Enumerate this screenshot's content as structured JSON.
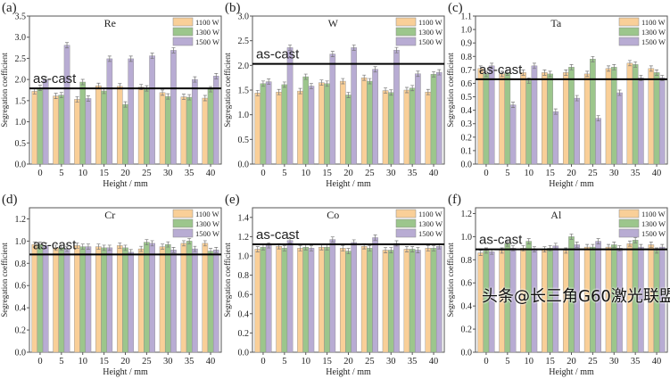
{
  "colors": {
    "1100 W": "#f9cf98",
    "1300 W": "#9cc68c",
    "1500 W": "#b8acd3",
    "error_bar": "#777777",
    "as_cast_line": "#000000"
  },
  "watermark": "头条@长三角G60激光联盟",
  "chart_data": [
    {
      "type": "bar",
      "panel_label": "(a)",
      "title": "Re",
      "xlabel": "Height / mm",
      "ylabel": "Segregation coefficient",
      "categories": [
        "0",
        "5",
        "10",
        "15",
        "20",
        "25",
        "30",
        "35",
        "40"
      ],
      "ylim": [
        0,
        3.5
      ],
      "yticks": [
        0.0,
        0.5,
        1.0,
        1.5,
        2.0,
        2.5,
        3.0,
        3.5
      ],
      "legend": "top-right",
      "grid": false,
      "reference_line": {
        "label": "as-cast",
        "value": 1.79
      },
      "series": [
        {
          "name": "1100 W",
          "values": [
            1.72,
            1.61,
            1.53,
            1.85,
            1.84,
            1.82,
            1.69,
            1.59,
            1.56
          ]
        },
        {
          "name": "1300 W",
          "values": [
            1.8,
            1.63,
            1.94,
            1.73,
            1.41,
            1.79,
            1.6,
            1.58,
            1.77
          ]
        },
        {
          "name": "1500 W",
          "values": [
            2.0,
            2.81,
            1.55,
            2.49,
            2.49,
            2.56,
            2.69,
            2.0,
            2.08
          ]
        }
      ]
    },
    {
      "type": "bar",
      "panel_label": "(b)",
      "title": "W",
      "xlabel": "Height / mm",
      "ylabel": "Segregation coefficient",
      "categories": [
        "0",
        "5",
        "10",
        "15",
        "20",
        "25",
        "30",
        "35",
        "40"
      ],
      "ylim": [
        0,
        3.0
      ],
      "yticks": [
        0.0,
        0.5,
        1.0,
        1.5,
        2.0,
        2.5,
        3.0
      ],
      "legend": "top-right",
      "grid": false,
      "reference_line": {
        "label": "as-cast",
        "value": 2.03
      },
      "series": [
        {
          "name": "1100 W",
          "values": [
            1.44,
            1.46,
            1.48,
            1.65,
            1.68,
            1.75,
            1.49,
            1.5,
            1.46
          ]
        },
        {
          "name": "1300 W",
          "values": [
            1.63,
            1.61,
            1.77,
            1.63,
            1.4,
            1.68,
            1.45,
            1.54,
            1.82
          ]
        },
        {
          "name": "1500 W",
          "values": [
            1.67,
            2.36,
            1.58,
            2.23,
            2.36,
            1.92,
            2.31,
            1.83,
            1.86
          ]
        }
      ]
    },
    {
      "type": "bar",
      "panel_label": "(c)",
      "title": "Ta",
      "xlabel": "Height / mm",
      "ylabel": "Segregation coefficient",
      "categories": [
        "0",
        "5",
        "10",
        "15",
        "20",
        "25",
        "30",
        "35",
        "40"
      ],
      "ylim": [
        0,
        1.1
      ],
      "yticks": [
        0.0,
        0.1,
        0.2,
        0.3,
        0.4,
        0.5,
        0.6,
        0.7,
        0.8,
        0.9,
        1.0,
        1.1
      ],
      "legend": "top-right",
      "grid": false,
      "reference_line": {
        "label": "as-cast",
        "value": 0.63
      },
      "series": [
        {
          "name": "1100 W",
          "values": [
            0.71,
            0.67,
            0.68,
            0.68,
            0.68,
            0.67,
            0.71,
            0.75,
            0.71
          ]
        },
        {
          "name": "1300 W",
          "values": [
            0.67,
            0.68,
            0.62,
            0.67,
            0.72,
            0.78,
            0.72,
            0.74,
            0.68
          ]
        },
        {
          "name": "1500 W",
          "values": [
            0.73,
            0.44,
            0.73,
            0.39,
            0.49,
            0.34,
            0.53,
            0.64,
            0.64
          ]
        }
      ]
    },
    {
      "type": "bar",
      "panel_label": "(d)",
      "title": "Cr",
      "xlabel": "Height / mm",
      "ylabel": "Segregation coefficient",
      "categories": [
        "0",
        "5",
        "10",
        "15",
        "20",
        "25",
        "30",
        "35",
        "40"
      ],
      "ylim": [
        0,
        1.3
      ],
      "yticks": [
        0.0,
        0.2,
        0.4,
        0.6,
        0.8,
        1.0,
        1.2
      ],
      "legend": "top-right",
      "grid": false,
      "reference_line": {
        "label": "as-cast",
        "value": 0.88
      },
      "series": [
        {
          "name": "1100 W",
          "values": [
            0.97,
            0.94,
            0.96,
            0.95,
            0.96,
            0.93,
            0.95,
            0.98,
            0.98
          ]
        },
        {
          "name": "1300 W",
          "values": [
            0.97,
            0.94,
            0.95,
            0.94,
            0.94,
            0.99,
            0.97,
            1.0,
            0.91
          ]
        },
        {
          "name": "1500 W",
          "values": [
            0.96,
            0.93,
            0.95,
            0.94,
            0.9,
            0.98,
            0.92,
            0.93,
            0.92
          ]
        }
      ]
    },
    {
      "type": "bar",
      "panel_label": "(e)",
      "title": "Co",
      "xlabel": "Height / mm",
      "ylabel": "Segregation coefficient",
      "categories": [
        "0",
        "5",
        "10",
        "15",
        "20",
        "25",
        "30",
        "35",
        "40"
      ],
      "ylim": [
        0,
        1.5
      ],
      "yticks": [
        0.0,
        0.2,
        0.4,
        0.6,
        0.8,
        1.0,
        1.2,
        1.4
      ],
      "legend": "top-right",
      "grid": false,
      "reference_line": {
        "label": "as-cast",
        "value": 1.12
      },
      "series": [
        {
          "name": "1100 W",
          "values": [
            1.07,
            1.1,
            1.08,
            1.09,
            1.08,
            1.1,
            1.06,
            1.07,
            1.08
          ]
        },
        {
          "name": "1300 W",
          "values": [
            1.09,
            1.08,
            1.09,
            1.09,
            1.05,
            1.08,
            1.06,
            1.07,
            1.08
          ]
        },
        {
          "name": "1500 W",
          "values": [
            1.11,
            1.16,
            1.08,
            1.17,
            1.14,
            1.19,
            1.13,
            1.06,
            1.1
          ]
        }
      ]
    },
    {
      "type": "bar",
      "panel_label": "(f)",
      "title": "Al",
      "xlabel": "Height / mm",
      "ylabel": "Segregation coefficient",
      "categories": [
        "0",
        "5",
        "10",
        "15",
        "20",
        "25",
        "30",
        "35",
        "40"
      ],
      "ylim": [
        0,
        1.25
      ],
      "yticks": [
        0.0,
        0.2,
        0.4,
        0.6,
        0.8,
        1.0,
        1.2
      ],
      "legend": "top-right",
      "grid": false,
      "reference_line": {
        "label": "as-cast",
        "value": 0.89
      },
      "series": [
        {
          "name": "1100 W",
          "values": [
            0.86,
            0.88,
            0.9,
            0.89,
            0.88,
            0.91,
            0.91,
            0.94,
            0.93
          ]
        },
        {
          "name": "1300 W",
          "values": [
            0.88,
            0.94,
            0.96,
            0.9,
            1.0,
            0.91,
            0.93,
            0.97,
            0.88
          ]
        },
        {
          "name": "1500 W",
          "values": [
            0.87,
            0.9,
            0.89,
            0.92,
            0.93,
            0.96,
            0.9,
            0.91,
            0.91
          ]
        }
      ]
    }
  ]
}
